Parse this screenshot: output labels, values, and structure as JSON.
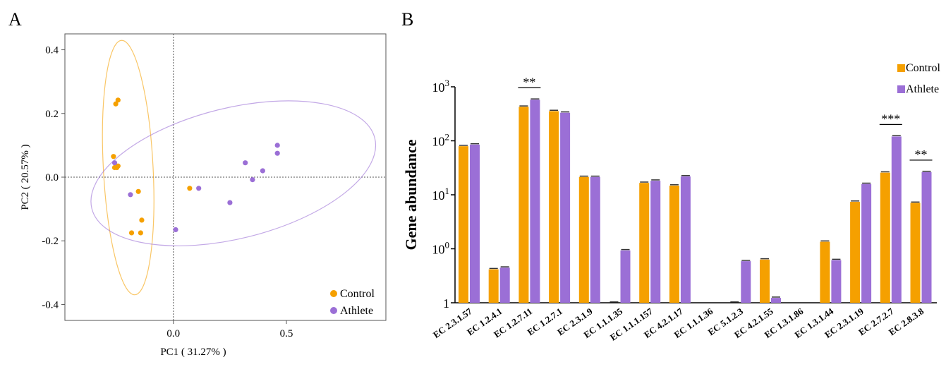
{
  "panels": {
    "a": "A",
    "b": "B"
  },
  "chart_data": [
    {
      "type": "scatter",
      "xlabel": "PC1 ( 31.27% )",
      "ylabel": "PC2 ( 20.57% )",
      "xlim": [
        -0.48,
        0.94
      ],
      "ylim": [
        -0.45,
        0.45
      ],
      "xticks": [
        "0.0",
        "0.5"
      ],
      "xtick_values": [
        0.0,
        0.5
      ],
      "yticks": [
        "-0.4",
        "-0.2",
        "0.0",
        "0.2",
        "0.4"
      ],
      "ytick_values": [
        -0.4,
        -0.2,
        0.0,
        0.2,
        0.4
      ],
      "legend_position": "bottom-right",
      "reference_lines": {
        "x": 0.0,
        "y": 0.0
      },
      "series": [
        {
          "name": "Control",
          "color": "#f5a000",
          "points": [
            [
              -0.255,
              0.23
            ],
            [
              -0.245,
              0.242
            ],
            [
              -0.265,
              0.065
            ],
            [
              -0.26,
              0.03
            ],
            [
              -0.25,
              0.03
            ],
            [
              -0.245,
              0.035
            ],
            [
              -0.155,
              -0.045
            ],
            [
              -0.14,
              -0.135
            ],
            [
              -0.185,
              -0.175
            ],
            [
              -0.145,
              -0.175
            ],
            [
              0.072,
              -0.035
            ]
          ],
          "ellipse": {
            "cx": -0.2,
            "cy": 0.03,
            "rx": 0.11,
            "ry": 0.4,
            "angle": -3
          }
        },
        {
          "name": "Athlete",
          "color": "#9b6fd6",
          "points": [
            [
              -0.26,
              0.045
            ],
            [
              -0.19,
              -0.055
            ],
            [
              0.01,
              -0.165
            ],
            [
              0.112,
              -0.035
            ],
            [
              0.25,
              -0.08
            ],
            [
              0.318,
              0.045
            ],
            [
              0.35,
              -0.008
            ],
            [
              0.395,
              0.02
            ],
            [
              0.46,
              0.1
            ],
            [
              0.46,
              0.075
            ]
          ],
          "ellipse": {
            "cx": 0.265,
            "cy": 0.012,
            "rx": 0.645,
            "ry": 0.205,
            "angle": -14
          }
        }
      ]
    },
    {
      "type": "bar",
      "ylabel": "Gene abundance",
      "yscale": "log",
      "yticks": [
        {
          "base": "1",
          "exp": ""
        },
        {
          "base": "10",
          "exp": "0"
        },
        {
          "base": "10",
          "exp": "1"
        },
        {
          "base": "10",
          "exp": "2"
        },
        {
          "base": "10",
          "exp": "3"
        }
      ],
      "categories": [
        "EC 2.3.1.57",
        "EC 1.2.4.1",
        "EC 1.2.7.11",
        "EC 1.2.7.1",
        "EC 2.3.1.9",
        "EC 1.1.1.35",
        "EC 1.1.1.157",
        "EC 4.2.1.17",
        "EC 1.1.1.36",
        "EC 5.1.2.3",
        "EC 4.2.1.55",
        "EC 1.3.1.86",
        "EC 1.3.1.44",
        "EC 2.3.1.19",
        "EC 2.7.2.7",
        "EC 2.8.3.8"
      ],
      "legend_position": "top-right",
      "series": [
        {
          "name": "Control",
          "color": "#f5a000",
          "log10_values": [
            1.9,
            -0.38,
            2.63,
            2.55,
            1.33,
            -1.0,
            1.22,
            1.17,
            null,
            -1.0,
            -0.2,
            null,
            0.13,
            0.87,
            1.41,
            0.85
          ]
        },
        {
          "name": "Athlete",
          "color": "#9b6fd6",
          "log10_values": [
            1.93,
            -0.35,
            2.76,
            2.52,
            1.33,
            -0.03,
            1.26,
            1.34,
            null,
            -0.23,
            -0.91,
            null,
            -0.21,
            1.2,
            2.08,
            1.42
          ]
        }
      ],
      "significance": [
        {
          "category": "EC 1.2.7.11",
          "label": "**"
        },
        {
          "category": "EC 2.7.2.7",
          "label": "***"
        },
        {
          "category": "EC 2.8.3.8",
          "label": "**"
        }
      ]
    }
  ]
}
